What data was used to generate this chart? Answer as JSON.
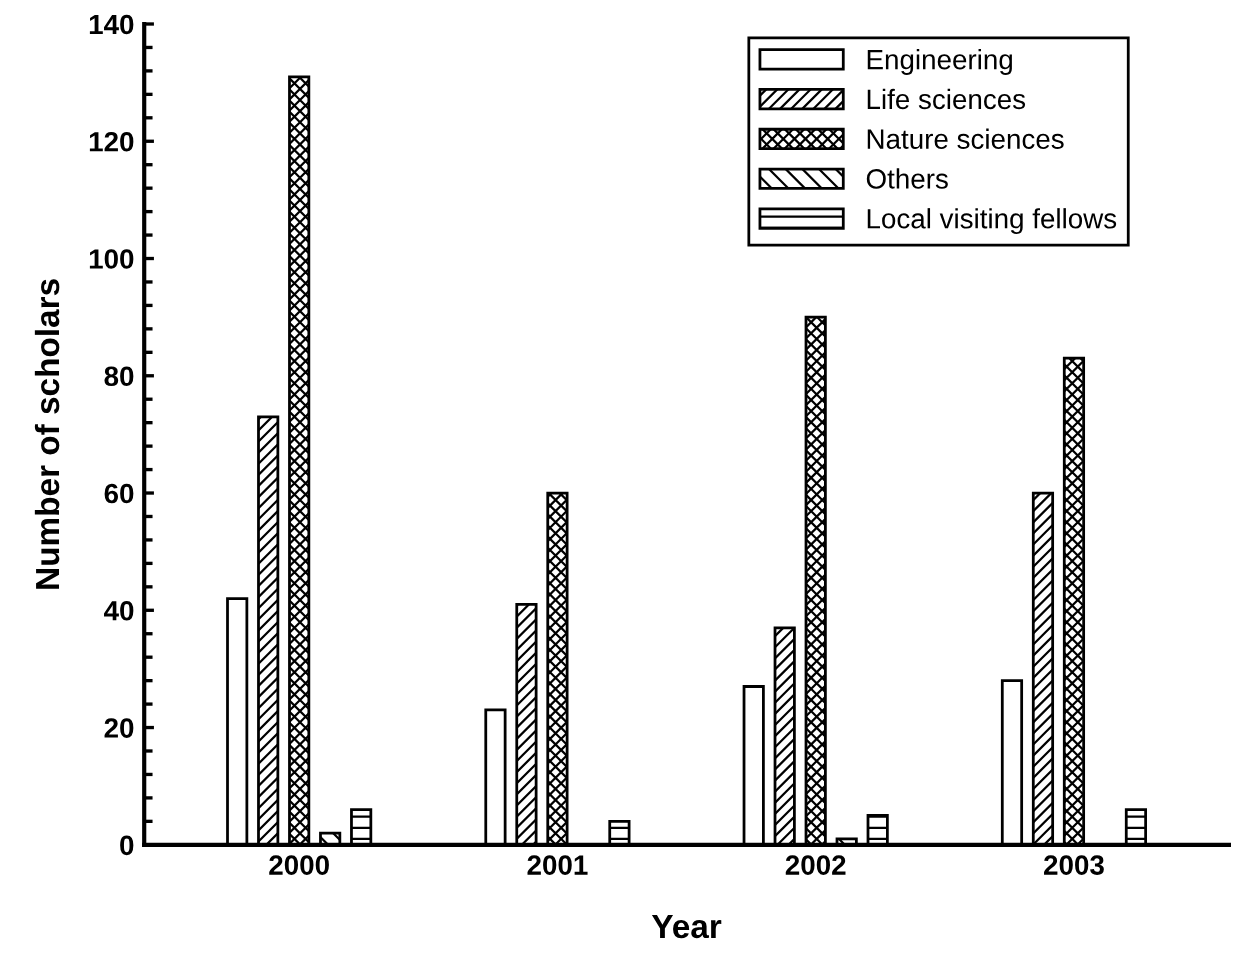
{
  "chart_data": {
    "type": "bar",
    "xlabel": "Year",
    "ylabel": "Number of scholars",
    "categories": [
      "2000",
      "2001",
      "2002",
      "2003"
    ],
    "series": [
      {
        "name": "Engineering",
        "color": "#ffffff",
        "values": [
          42,
          23,
          27,
          28
        ]
      },
      {
        "name": "Life sciences",
        "color": "#000000",
        "values": [
          73,
          41,
          37,
          60
        ]
      },
      {
        "name": "Nature sciences",
        "color": "#000000",
        "values": [
          131,
          60,
          90,
          83
        ]
      },
      {
        "name": "Others",
        "color": "#000000",
        "values": [
          2,
          0,
          1,
          0
        ]
      },
      {
        "name": "Local visiting fellows",
        "color": "#000000",
        "values": [
          6,
          4,
          5,
          6
        ]
      }
    ],
    "ylim": [
      0,
      140
    ],
    "yticks": [
      0,
      20,
      40,
      60,
      80,
      100,
      120,
      140
    ],
    "grid": false,
    "legend": "top right"
  }
}
